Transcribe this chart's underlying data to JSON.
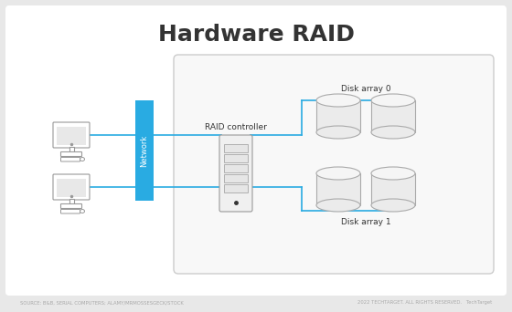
{
  "title": "Hardware RAID",
  "title_fontsize": 18,
  "bg_color": "#e8e8e8",
  "card_color": "#ffffff",
  "cyan_color": "#29abe2",
  "gray_color": "#999999",
  "light_gray": "#cccccc",
  "dark_gray": "#333333",
  "disk_fill": "#ebebeb",
  "disk_stroke": "#aaaaaa",
  "network_label": "Network",
  "controller_label": "RAID controller",
  "disk_array0_label": "Disk array 0",
  "disk_array1_label": "Disk array 1",
  "footer_left": "SOURCE: B&B, SERIAL COMPUTERS; ALAMY/MRMOSSESGECK/STOCK",
  "footer_right": "2022 TECHTARGET. ALL RIGHTS RESERVED.   TechTarget"
}
